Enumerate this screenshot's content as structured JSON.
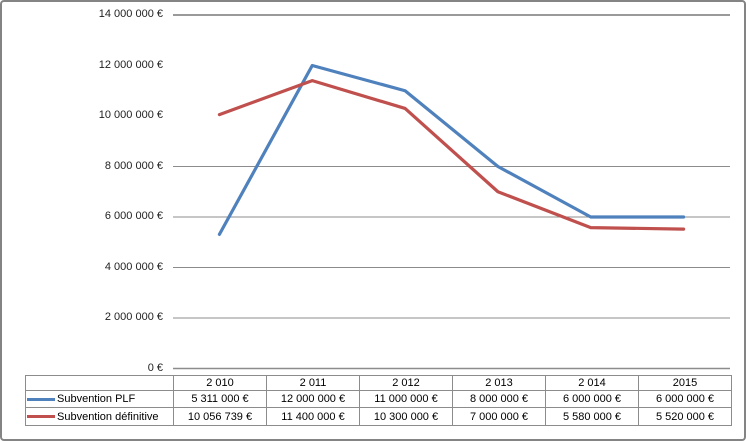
{
  "window": {
    "background": "#ffffff",
    "frame_border_color": "#848484"
  },
  "chart_data": {
    "type": "line",
    "title": "",
    "xlabel": "",
    "ylabel": "",
    "categories": [
      "2 010",
      "2 011",
      "2 012",
      "2 013",
      "2 014",
      "2015"
    ],
    "series": [
      {
        "name": "Subvention PLF",
        "color": "#4F81BD",
        "values": [
          5311000,
          12000000,
          11000000,
          8000000,
          6000000,
          6000000
        ],
        "display_values": [
          "5 311 000 €",
          "12 000 000 €",
          "11 000 000 €",
          "8 000 000 €",
          "6 000 000 €",
          "6 000 000 €"
        ]
      },
      {
        "name": "Subvention définitive",
        "color": "#C0504D",
        "values": [
          10056739,
          11400000,
          10300000,
          7000000,
          5580000,
          5520000
        ],
        "display_values": [
          "10 056 739 €",
          "11 400 000 €",
          "10 300 000 €",
          "7 000 000 €",
          "5 580 000 €",
          "5 520 000 €"
        ]
      }
    ],
    "y_axis": {
      "min": 0,
      "max": 14000000,
      "tick_values": [
        14000000,
        12000000,
        10000000,
        8000000,
        6000000,
        4000000,
        2000000,
        0
      ],
      "tick_labels": [
        "14 000 000 €",
        "12 000 000 €",
        "10 000 000 €",
        "8 000 000 €",
        "6 000 000 €",
        "4 000 000 €",
        "2 000 000 €",
        "0 €"
      ],
      "gridline_values": [
        14000000,
        8000000,
        6000000,
        4000000,
        2000000,
        0
      ],
      "gridline_color": "#8C8C8C"
    },
    "legend_position": "data-table-left-column",
    "grid": "horizontal-partial",
    "ylim": [
      0,
      14000000
    ]
  }
}
